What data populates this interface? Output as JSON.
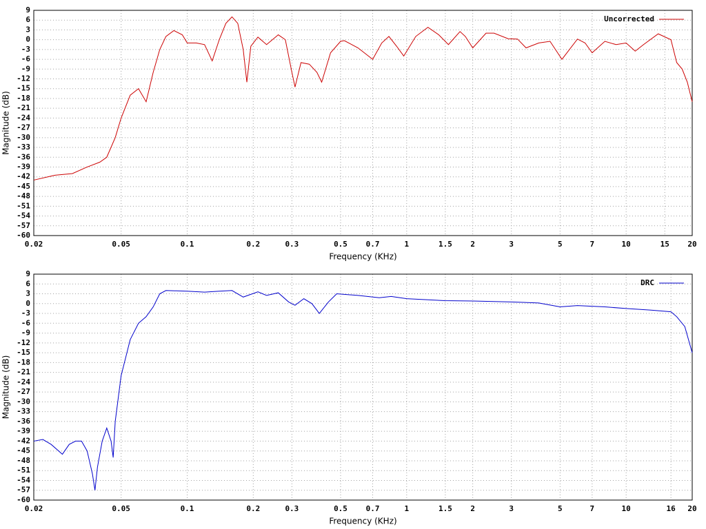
{
  "chart_data": [
    {
      "type": "line",
      "xlabel": "Frequency (KHz)",
      "ylabel": "Magnitude (dB)",
      "log_x": true,
      "grid": true,
      "legend": "top-right",
      "xlim": [
        0.02,
        20
      ],
      "ylim": [
        -60,
        9
      ],
      "xticks": [
        0.02,
        0.05,
        0.1,
        0.2,
        0.3,
        0.5,
        0.7,
        1,
        1.5,
        2,
        3,
        5,
        7,
        10,
        15,
        20
      ],
      "yticks": [
        9,
        6,
        3,
        0,
        -3,
        -6,
        -9,
        -12,
        -15,
        -18,
        -21,
        -24,
        -27,
        -30,
        -33,
        -36,
        -39,
        -42,
        -45,
        -48,
        -51,
        -54,
        -57,
        -60
      ],
      "x": [
        0.02,
        0.025,
        0.03,
        0.035,
        0.04,
        0.043,
        0.047,
        0.05,
        0.055,
        0.06,
        0.065,
        0.07,
        0.075,
        0.08,
        0.087,
        0.095,
        0.1,
        0.11,
        0.12,
        0.13,
        0.14,
        0.15,
        0.16,
        0.17,
        0.18,
        0.187,
        0.195,
        0.21,
        0.23,
        0.26,
        0.28,
        0.3,
        0.31,
        0.33,
        0.36,
        0.39,
        0.41,
        0.45,
        0.5,
        0.52,
        0.6,
        0.7,
        0.77,
        0.83,
        0.9,
        0.97,
        1.1,
        1.25,
        1.4,
        1.55,
        1.75,
        1.85,
        2.0,
        2.3,
        2.5,
        2.9,
        3.2,
        3.5,
        4,
        4.5,
        5.1,
        6,
        6.5,
        7,
        8,
        9,
        10,
        11,
        12,
        14,
        16,
        17,
        18,
        19,
        20
      ],
      "series": [
        {
          "name": "Uncorrected",
          "color": "#cc0000",
          "values": [
            -43,
            -41.5,
            -41,
            -39,
            -37.5,
            -36,
            -30,
            -24,
            -17,
            -15,
            -19,
            -10,
            -3,
            1,
            2.8,
            1.5,
            -1,
            -1,
            -1.5,
            -6.5,
            0,
            5,
            7,
            5,
            -3,
            -13,
            -2,
            0.8,
            -1.5,
            1.5,
            0,
            -10,
            -14.5,
            -7,
            -7.5,
            -10,
            -13,
            -4,
            -0.5,
            -0.3,
            -2.5,
            -6,
            -1,
            1,
            -2,
            -5,
            1,
            3.8,
            1.5,
            -1.5,
            2.5,
            1,
            -2.5,
            2,
            2,
            0.3,
            0.2,
            -2.5,
            -1,
            -0.5,
            -6,
            0.2,
            -1,
            -4,
            -0.5,
            -1.5,
            -1,
            -3.5,
            -1.5,
            1.8,
            0,
            -7,
            -9,
            -13,
            -19
          ]
        }
      ]
    },
    {
      "type": "line",
      "xlabel": "Frequency (KHz)",
      "ylabel": "Magnitude (dB)",
      "log_x": true,
      "grid": true,
      "legend": "top-right",
      "xlim": [
        0.02,
        20
      ],
      "ylim": [
        -60,
        9
      ],
      "xticks": [
        0.02,
        0.05,
        0.1,
        0.2,
        0.3,
        0.5,
        0.7,
        1,
        1.5,
        2,
        3,
        5,
        7,
        10,
        16,
        20
      ],
      "yticks": [
        9,
        6,
        3,
        0,
        -3,
        -6,
        -9,
        -12,
        -15,
        -18,
        -21,
        -24,
        -27,
        -30,
        -33,
        -36,
        -39,
        -42,
        -45,
        -48,
        -51,
        -54,
        -57,
        -60
      ],
      "x": [
        0.02,
        0.022,
        0.024,
        0.027,
        0.029,
        0.031,
        0.033,
        0.035,
        0.037,
        0.038,
        0.039,
        0.041,
        0.043,
        0.045,
        0.046,
        0.047,
        0.05,
        0.055,
        0.06,
        0.065,
        0.07,
        0.075,
        0.08,
        0.1,
        0.12,
        0.14,
        0.16,
        0.18,
        0.21,
        0.23,
        0.26,
        0.29,
        0.31,
        0.34,
        0.37,
        0.4,
        0.44,
        0.48,
        0.6,
        0.75,
        0.85,
        1,
        1.5,
        2,
        3,
        4,
        5,
        6,
        8,
        10,
        13,
        16,
        17,
        18.5,
        20
      ],
      "series": [
        {
          "name": "DRC",
          "color": "#0000cc",
          "values": [
            -42,
            -41.5,
            -43,
            -46,
            -43,
            -42,
            -42,
            -45,
            -52,
            -57,
            -50,
            -42,
            -38,
            -42,
            -47,
            -36,
            -22,
            -11,
            -6,
            -4,
            -1,
            3,
            4,
            3.8,
            3.5,
            3.8,
            4,
            2,
            3.6,
            2.5,
            3.3,
            0.5,
            -0.5,
            1.5,
            0,
            -3,
            0.5,
            3,
            2.5,
            1.8,
            2.2,
            1.5,
            0.9,
            0.8,
            0.5,
            0.2,
            -1,
            -0.6,
            -1,
            -1.5,
            -2,
            -2.5,
            -4,
            -7,
            -15
          ]
        }
      ]
    }
  ]
}
